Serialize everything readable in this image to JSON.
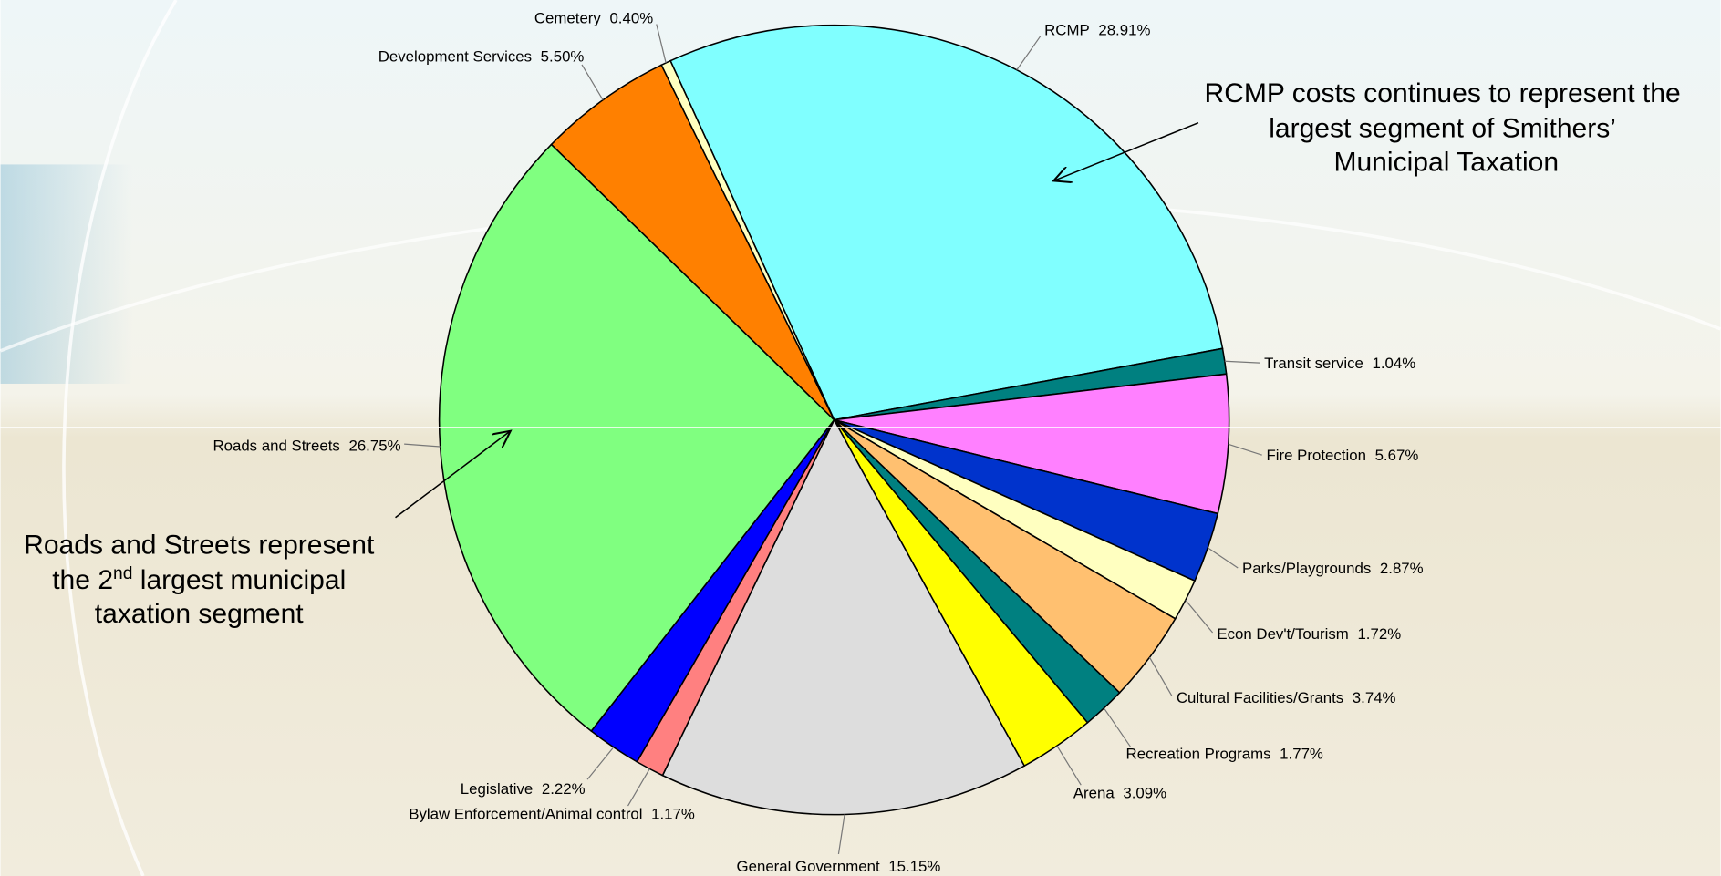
{
  "chart_data": {
    "type": "pie",
    "categories": [
      "RCMP",
      "Transit service",
      "Fire Protection",
      "Parks/Playgrounds",
      "Econ Dev't/Tourism",
      "Cultural Facilities/Grants",
      "Recreation Programs",
      "Arena",
      "General Government",
      "Bylaw Enforcement/Animal control",
      "Legislative",
      "Roads and Streets",
      "Development Services",
      "Cemetery"
    ],
    "values": [
      28.91,
      1.04,
      5.67,
      2.87,
      1.72,
      3.74,
      1.77,
      3.09,
      15.15,
      1.17,
      2.22,
      26.75,
      5.5,
      0.4
    ],
    "value_labels": [
      "28.91%",
      "1.04%",
      "5.67%",
      "2.87%",
      "1.72%",
      "3.74%",
      "1.77%",
      "3.09%",
      "15.15%",
      "1.17%",
      "2.22%",
      "26.75%",
      "5.50%",
      "0.40%"
    ],
    "colors": [
      "#80ffff",
      "#008080",
      "#ff80ff",
      "#0033cc",
      "#ffffc0",
      "#ffc070",
      "#008080",
      "#ffff00",
      "#dddddd",
      "#ff8080",
      "#0000ff",
      "#80ff80",
      "#ff8000",
      "#ffffc0"
    ],
    "annotations": [
      {
        "lines": [
          "RCMP costs continues to represent the",
          "largest segment of Smithers’",
          "Municipal Taxation"
        ]
      },
      {
        "lines": [
          "Roads and Streets represent",
          [
            "the 2",
            "nd",
            " largest municipal"
          ],
          "taxation segment"
        ]
      }
    ]
  }
}
